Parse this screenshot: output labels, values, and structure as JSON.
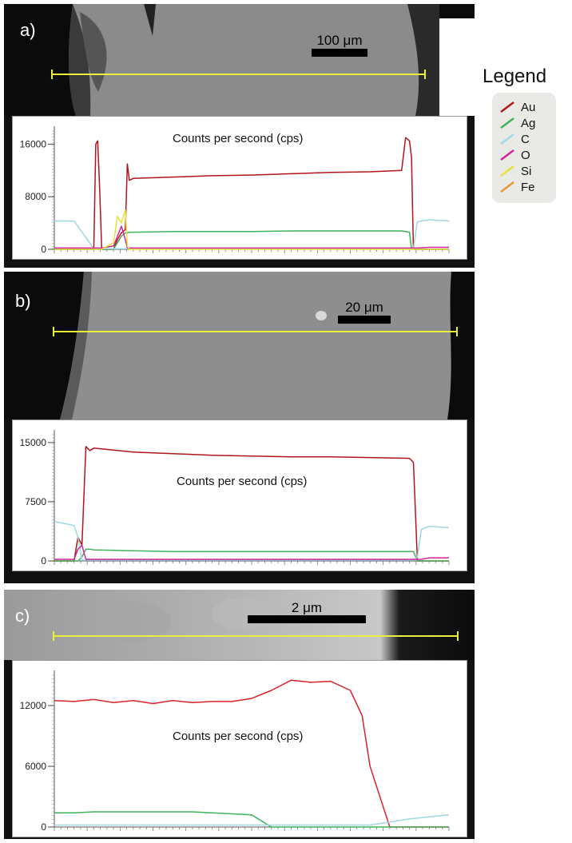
{
  "legend": {
    "title": "Legend",
    "items": [
      {
        "label": "Au",
        "color": "#b0151a"
      },
      {
        "label": "Ag",
        "color": "#3fb25a"
      },
      {
        "label": "C",
        "color": "#9fd8e3"
      },
      {
        "label": "O",
        "color": "#d1269a"
      },
      {
        "label": "Si",
        "color": "#e6e23c"
      },
      {
        "label": "Fe",
        "color": "#e8982a"
      }
    ]
  },
  "panels": [
    {
      "label": "a)",
      "scale_bar": "100 μm",
      "plot_title": "Counts per second (cps)"
    },
    {
      "label": "b)",
      "scale_bar": "20 μm",
      "plot_title": "Counts per second (cps)"
    },
    {
      "label": "c)",
      "scale_bar": "2 μm",
      "plot_title": "Counts per second (cps)"
    }
  ],
  "chart_data": [
    {
      "type": "line",
      "title": "Counts per second (cps)",
      "ylim": [
        0,
        18000
      ],
      "yticks": [
        "0",
        "8000",
        "16000"
      ],
      "ytick_values": [
        0,
        8000,
        16000
      ],
      "x": [
        0,
        5,
        10,
        10.5,
        11,
        11.5,
        12,
        15,
        16,
        17,
        18,
        18.5,
        19,
        20,
        30,
        40,
        50,
        60,
        70,
        80,
        88,
        89,
        90,
        90.5,
        91,
        92,
        95,
        100
      ],
      "series": [
        {
          "name": "Au",
          "color": "#b0151a",
          "values": [
            0,
            0,
            0,
            16000,
            16500,
            9000,
            0,
            0,
            1500,
            2500,
            3000,
            13000,
            10500,
            10800,
            11000,
            11200,
            11300,
            11500,
            11700,
            11800,
            12000,
            17000,
            16500,
            14000,
            0,
            0,
            0,
            0
          ]
        },
        {
          "name": "Ag",
          "color": "#3fb25a",
          "values": [
            0,
            0,
            0,
            0,
            0,
            0,
            0,
            0,
            1000,
            2000,
            2500,
            2500,
            2600,
            2600,
            2700,
            2700,
            2700,
            2800,
            2800,
            2800,
            2800,
            2700,
            2600,
            0,
            0,
            0,
            0,
            0
          ]
        },
        {
          "name": "C",
          "color": "#9fd8e3",
          "values": [
            4300,
            4300,
            100,
            100,
            100,
            100,
            100,
            100,
            100,
            100,
            100,
            100,
            100,
            100,
            100,
            100,
            100,
            100,
            100,
            100,
            100,
            100,
            100,
            100,
            100,
            4200,
            4500,
            4300
          ]
        },
        {
          "name": "O",
          "color": "#d1269a",
          "values": [
            200,
            200,
            200,
            200,
            200,
            200,
            200,
            500,
            2000,
            3500,
            1500,
            200,
            200,
            200,
            200,
            200,
            200,
            200,
            200,
            200,
            200,
            200,
            200,
            200,
            200,
            200,
            300,
            300
          ]
        },
        {
          "name": "Si",
          "color": "#e6e23c",
          "values": [
            0,
            0,
            0,
            0,
            0,
            0,
            0,
            1000,
            5000,
            4000,
            6000,
            500,
            0,
            0,
            0,
            0,
            0,
            0,
            0,
            0,
            0,
            0,
            0,
            0,
            0,
            0,
            0,
            0
          ]
        }
      ]
    },
    {
      "type": "line",
      "title": "Counts per second (cps)",
      "ylim": [
        0,
        16000
      ],
      "yticks": [
        "0",
        "7500",
        "15000"
      ],
      "ytick_values": [
        0,
        7500,
        15000
      ],
      "x": [
        0,
        5,
        6,
        7,
        8,
        9,
        10,
        20,
        30,
        40,
        50,
        60,
        70,
        80,
        90,
        91,
        92,
        93,
        95,
        100
      ],
      "series": [
        {
          "name": "Au",
          "color": "#b0151a",
          "values": [
            0,
            0,
            3000,
            2000,
            14500,
            14000,
            14300,
            13800,
            13600,
            13400,
            13300,
            13200,
            13200,
            13100,
            13000,
            12500,
            0,
            0,
            0,
            0
          ]
        },
        {
          "name": "Ag",
          "color": "#3fb25a",
          "values": [
            0,
            0,
            0,
            500,
            1500,
            1500,
            1400,
            1300,
            1200,
            1200,
            1200,
            1200,
            1200,
            1200,
            1200,
            1200,
            0,
            0,
            0,
            0
          ]
        },
        {
          "name": "C",
          "color": "#9fd8e3",
          "values": [
            5000,
            4500,
            3000,
            100,
            100,
            100,
            100,
            100,
            100,
            100,
            100,
            100,
            100,
            100,
            100,
            100,
            500,
            4000,
            4400,
            4200
          ]
        },
        {
          "name": "O",
          "color": "#d1269a",
          "values": [
            200,
            200,
            1500,
            2000,
            200,
            200,
            200,
            200,
            200,
            200,
            200,
            200,
            200,
            200,
            200,
            200,
            200,
            200,
            400,
            400
          ]
        }
      ]
    },
    {
      "type": "line",
      "title": "Counts per second (cps)",
      "ylim": [
        0,
        15000
      ],
      "yticks": [
        "0",
        "6000",
        "12000"
      ],
      "ytick_values": [
        0,
        6000,
        12000
      ],
      "x": [
        0,
        5,
        10,
        15,
        20,
        25,
        30,
        35,
        40,
        45,
        50,
        55,
        60,
        65,
        70,
        75,
        78,
        80,
        85,
        90,
        100
      ],
      "series": [
        {
          "name": "Au",
          "color": "#d9232a",
          "values": [
            12500,
            12400,
            12600,
            12300,
            12500,
            12200,
            12500,
            12300,
            12400,
            12400,
            12700,
            13500,
            14500,
            14300,
            14400,
            13500,
            11000,
            6000,
            0,
            0,
            0
          ]
        },
        {
          "name": "Ag",
          "color": "#3fb25a",
          "values": [
            1400,
            1400,
            1500,
            1500,
            1500,
            1500,
            1500,
            1500,
            1400,
            1300,
            1200,
            0,
            0,
            0,
            0,
            0,
            0,
            0,
            0,
            0,
            0
          ]
        },
        {
          "name": "C",
          "color": "#9fd8e3",
          "values": [
            200,
            200,
            200,
            200,
            200,
            200,
            200,
            200,
            200,
            200,
            200,
            200,
            200,
            200,
            200,
            200,
            200,
            200,
            500,
            800,
            1200
          ]
        }
      ]
    }
  ]
}
